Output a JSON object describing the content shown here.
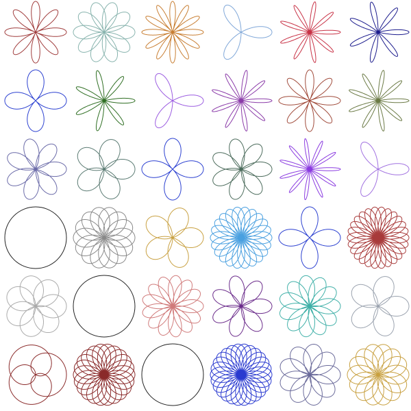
{
  "grid": {
    "rows": 6,
    "cols": 6
  },
  "roses": [
    {
      "shape": "r=cos(4θ)",
      "n": 4,
      "d": 1,
      "color": "#a03c3c"
    },
    {
      "shape": "r=cos(5θ/2)",
      "n": 5,
      "d": 2,
      "color": "#87b3ad"
    },
    {
      "shape": "r=cos(6θ)",
      "n": 6,
      "d": 1,
      "color": "#c87e32"
    },
    {
      "shape": "r=cos(3θ)",
      "n": 3,
      "d": 1,
      "color": "#7ea6d8"
    },
    {
      "shape": "r=cos(9θ)",
      "n": 9,
      "d": 1,
      "color": "#c83246"
    },
    {
      "shape": "r=cos(7θ)",
      "n": 7,
      "d": 1,
      "color": "#1a1a8c"
    },
    {
      "shape": "r=cos(2θ)",
      "n": 2,
      "d": 1,
      "color": "#2a3fd0"
    },
    {
      "shape": "r=cos(7θ)",
      "n": 7,
      "d": 1,
      "color": "#2e6e22"
    },
    {
      "shape": "r=cos(3θ)",
      "n": 3,
      "d": 1,
      "color": "#9a5ae0"
    },
    {
      "shape": "r=cos(9θ)",
      "n": 9,
      "d": 1,
      "color": "#8a3aa8"
    },
    {
      "shape": "r=cos(4θ)",
      "n": 4,
      "d": 1,
      "color": "#a04a3a"
    },
    {
      "shape": "r=cos(9θ)",
      "n": 9,
      "d": 1,
      "color": "#6b7a45"
    },
    {
      "shape": "r=cos(7θ/3)",
      "n": 7,
      "d": 3,
      "color": "#6a6aa8"
    },
    {
      "shape": "r=cos(5θ/3)",
      "n": 5,
      "d": 3,
      "color": "#5a7a72"
    },
    {
      "shape": "r=cos(2θ)",
      "n": 2,
      "d": 1,
      "color": "#2a3fd0"
    },
    {
      "shape": "r=cos(7θ/3)",
      "n": 7,
      "d": 3,
      "color": "#4a6a5a"
    },
    {
      "shape": "r=cos(11θ)",
      "n": 11,
      "d": 1,
      "color": "#8a3ae0"
    },
    {
      "shape": "r=cos(3θ)",
      "n": 3,
      "d": 1,
      "color": "#a070e0"
    },
    {
      "shape": "circle",
      "n": 0,
      "d": 1,
      "color": "#222222"
    },
    {
      "shape": "r=cos(7θ/4)",
      "n": 7,
      "d": 4,
      "color": "#888888"
    },
    {
      "shape": "r=cos(5θ/3)",
      "n": 5,
      "d": 3,
      "color": "#c8a040"
    },
    {
      "shape": "r=cos(11θ/4)",
      "n": 11,
      "d": 4,
      "color": "#4aa0e0"
    },
    {
      "shape": "r=cos(2θ)",
      "n": 2,
      "d": 1,
      "color": "#2a3fd0"
    },
    {
      "shape": "r=cos(13θ/4)",
      "n": 13,
      "d": 4,
      "color": "#a83a3a"
    },
    {
      "shape": "r=cos(7θ/5)",
      "n": 7,
      "d": 5,
      "color": "#aaaaaa"
    },
    {
      "shape": "circle",
      "n": 0,
      "d": 1,
      "color": "#222222"
    },
    {
      "shape": "r=cos(13θ/5)",
      "n": 13,
      "d": 5,
      "color": "#d07a7a"
    },
    {
      "shape": "r=cos(7θ/3)",
      "n": 7,
      "d": 3,
      "color": "#6a2a8a"
    },
    {
      "shape": "r=cos(11θ/5)",
      "n": 11,
      "d": 5,
      "color": "#40b0a8"
    },
    {
      "shape": "r=cos(5θ/3)",
      "n": 5,
      "d": 3,
      "color": "#9aa2ae"
    },
    {
      "shape": "r=cos(3θ/5)",
      "n": 3,
      "d": 5,
      "color": "#8a2a2a"
    },
    {
      "shape": "r=cos(11θ/6)",
      "n": 11,
      "d": 6,
      "color": "#8a2a2a"
    },
    {
      "shape": "circle",
      "n": 0,
      "d": 1,
      "color": "#222222"
    },
    {
      "shape": "r=cos(13θ/6)",
      "n": 13,
      "d": 6,
      "color": "#2a3ad0"
    },
    {
      "shape": "r=cos(9θ/5)",
      "n": 9,
      "d": 5,
      "color": "#6a6a9a"
    },
    {
      "shape": "r=cos(7θ/4)",
      "n": 7,
      "d": 4,
      "color": "#c8a040"
    }
  ]
}
